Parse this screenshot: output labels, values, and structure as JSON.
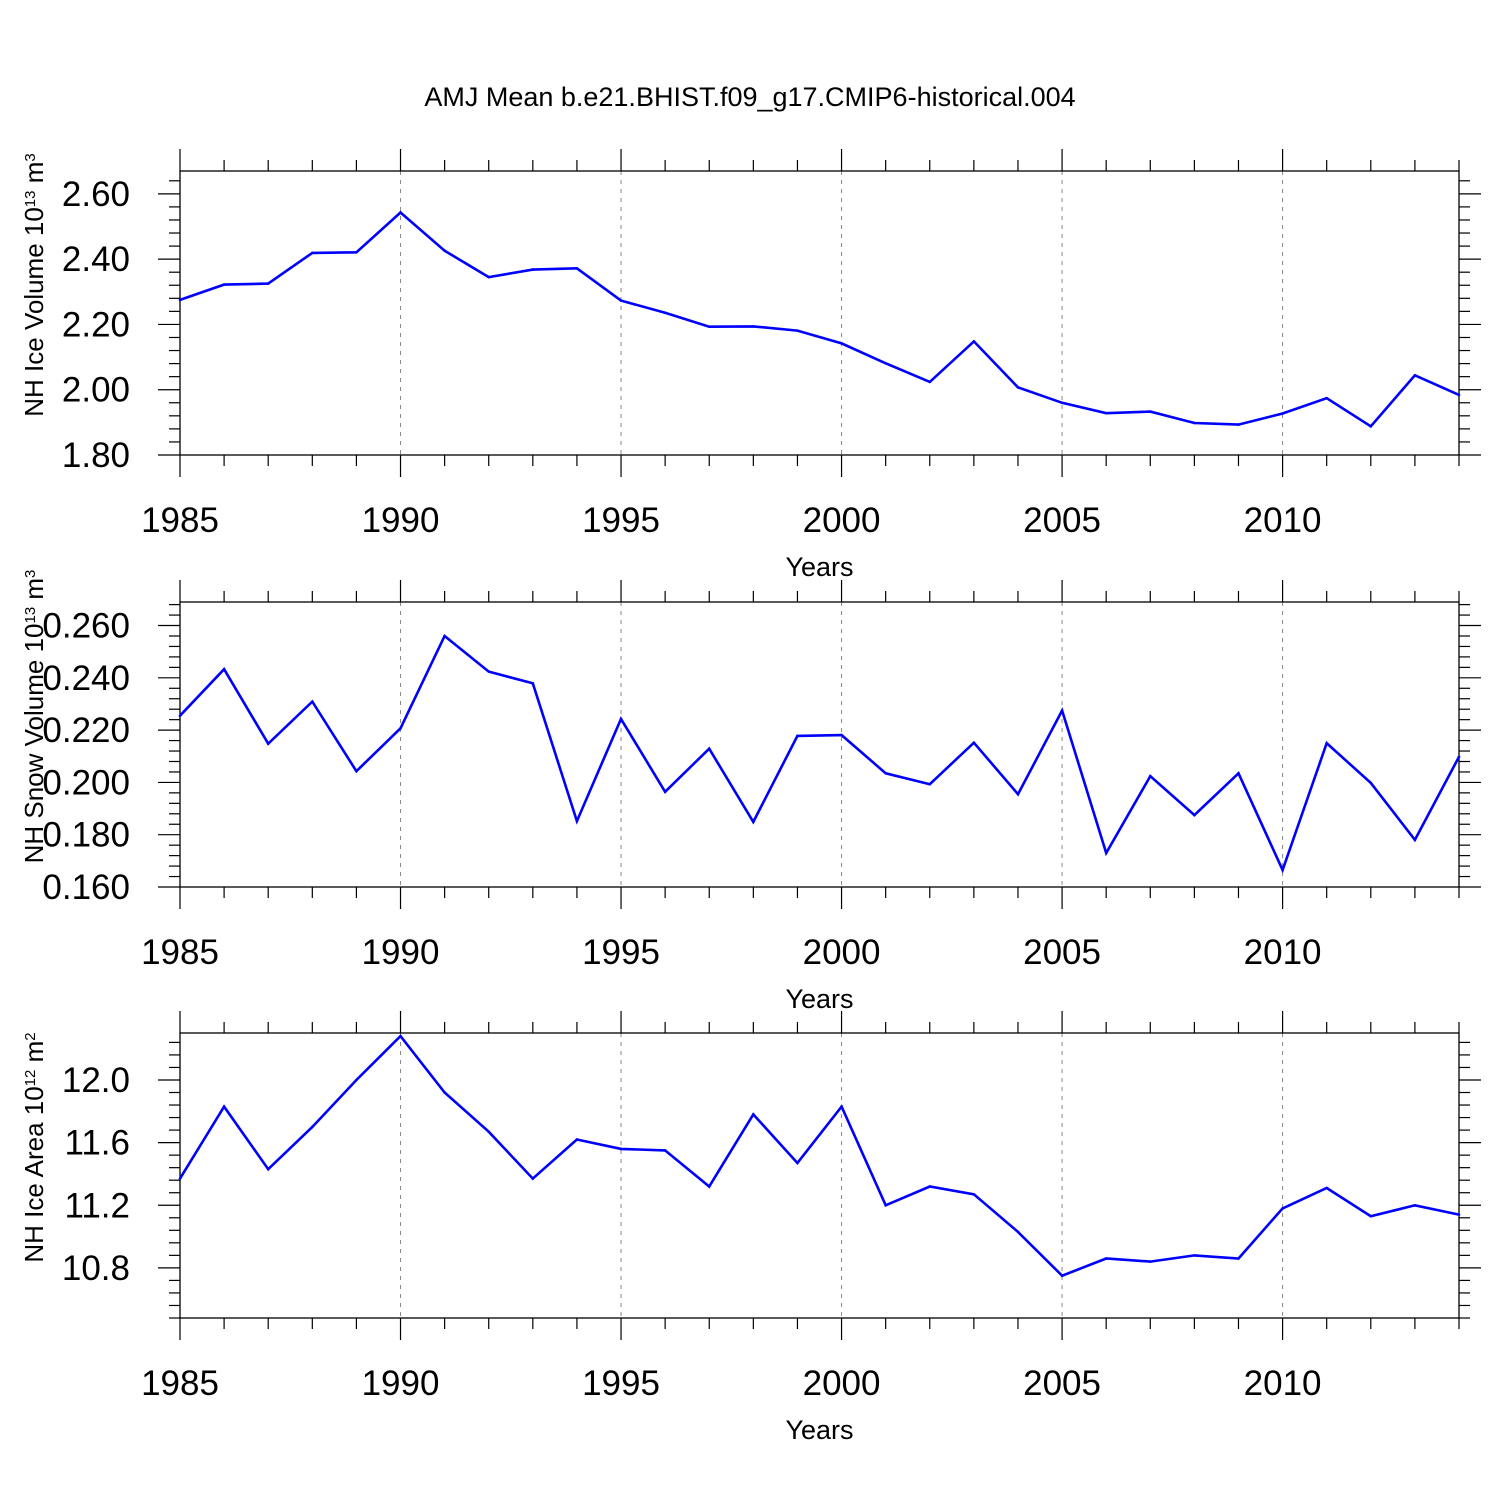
{
  "title": "AMJ Mean b.e21.BHIST.f09_g17.CMIP6-historical.004",
  "line_color": "#0000ff",
  "chart_data": [
    {
      "type": "line",
      "xlabel": "Years",
      "ylabel": {
        "text": "NH Ice Volume 10",
        "exp": "13",
        "unit": " m",
        "unit_exp": "3"
      },
      "xlim": [
        1985,
        2014
      ],
      "ylim": [
        1.8,
        2.67
      ],
      "x_ticks": [
        1985,
        1990,
        1995,
        2000,
        2005,
        2010
      ],
      "x_tick_labels": [
        "1985",
        "1990",
        "1995",
        "2000",
        "2005",
        "2010"
      ],
      "y_ticks": [
        1.8,
        2.0,
        2.2,
        2.4,
        2.6
      ],
      "y_tick_labels": [
        "1.80",
        "2.00",
        "2.20",
        "2.40",
        "2.60"
      ],
      "y_minor_step": 0.04,
      "vlines": [
        1990,
        1995,
        2000,
        2005,
        2010
      ],
      "series": [
        {
          "name": "NH Ice Volume",
          "x": [
            1985,
            1986,
            1987,
            1988,
            1989,
            1990,
            1991,
            1992,
            1993,
            1994,
            1995,
            1996,
            1997,
            1998,
            1999,
            2000,
            2001,
            2002,
            2003,
            2004,
            2005,
            2006,
            2007,
            2008,
            2009,
            2010,
            2011,
            2012,
            2013,
            2014
          ],
          "values": [
            2.275,
            2.322,
            2.325,
            2.419,
            2.421,
            2.543,
            2.426,
            2.345,
            2.368,
            2.372,
            2.273,
            2.236,
            2.193,
            2.194,
            2.181,
            2.142,
            2.081,
            2.024,
            2.148,
            2.007,
            1.96,
            1.928,
            1.933,
            1.898,
            1.893,
            1.927,
            1.974,
            1.888,
            2.044,
            1.984
          ]
        }
      ]
    },
    {
      "type": "line",
      "xlabel": "Years",
      "ylabel": {
        "text": "NH Snow Volume 10",
        "exp": "13",
        "unit": " m",
        "unit_exp": "3"
      },
      "xlim": [
        1985,
        2014
      ],
      "ylim": [
        0.16,
        0.269
      ],
      "x_ticks": [
        1985,
        1990,
        1995,
        2000,
        2005,
        2010
      ],
      "x_tick_labels": [
        "1985",
        "1990",
        "1995",
        "2000",
        "2005",
        "2010"
      ],
      "y_ticks": [
        0.16,
        0.18,
        0.2,
        0.22,
        0.24,
        0.26
      ],
      "y_tick_labels": [
        "0.160",
        "0.180",
        "0.200",
        "0.220",
        "0.240",
        "0.260"
      ],
      "y_minor_step": 0.004,
      "vlines": [
        1990,
        1995,
        2000,
        2005,
        2010
      ],
      "series": [
        {
          "name": "NH Snow Volume",
          "x": [
            1985,
            1986,
            1987,
            1988,
            1989,
            1990,
            1991,
            1992,
            1993,
            1994,
            1995,
            1996,
            1997,
            1998,
            1999,
            2000,
            2001,
            2002,
            2003,
            2004,
            2005,
            2006,
            2007,
            2008,
            2009,
            2010,
            2011,
            2012,
            2013,
            2014
          ],
          "values": [
            0.2255,
            0.2433,
            0.2148,
            0.2309,
            0.2043,
            0.2207,
            0.256,
            0.2424,
            0.2379,
            0.1852,
            0.2243,
            0.1964,
            0.2129,
            0.1849,
            0.2178,
            0.2181,
            0.2035,
            0.1993,
            0.2152,
            0.1955,
            0.2275,
            0.173,
            0.2024,
            0.1875,
            0.2035,
            0.1665,
            0.215,
            0.1998,
            0.178,
            0.2098
          ]
        }
      ]
    },
    {
      "type": "line",
      "xlabel": "Years",
      "ylabel": {
        "text": "NH Ice Area 10",
        "exp": "12",
        "unit": " m",
        "unit_exp": "2"
      },
      "xlim": [
        1985,
        2014
      ],
      "ylim": [
        10.48,
        12.3
      ],
      "x_ticks": [
        1985,
        1990,
        1995,
        2000,
        2005,
        2010
      ],
      "x_tick_labels": [
        "1985",
        "1990",
        "1995",
        "2000",
        "2005",
        "2010"
      ],
      "y_ticks": [
        10.8,
        11.2,
        11.6,
        12.0
      ],
      "y_tick_labels": [
        "10.8",
        "11.2",
        "11.6",
        "12.0"
      ],
      "y_minor_step": 0.08,
      "vlines": [
        1990,
        1995,
        2000,
        2005,
        2010
      ],
      "series": [
        {
          "name": "NH Ice Area",
          "x": [
            1985,
            1986,
            1987,
            1988,
            1989,
            1990,
            1991,
            1992,
            1993,
            1994,
            1995,
            1996,
            1997,
            1998,
            1999,
            2000,
            2001,
            2002,
            2003,
            2004,
            2005,
            2006,
            2007,
            2008,
            2009,
            2010,
            2011,
            2012,
            2013,
            2014
          ],
          "values": [
            11.37,
            11.83,
            11.43,
            11.7,
            12.0,
            12.28,
            11.92,
            11.67,
            11.37,
            11.62,
            11.56,
            11.55,
            11.32,
            11.78,
            11.47,
            11.83,
            11.2,
            11.32,
            11.27,
            11.03,
            10.75,
            10.86,
            10.84,
            10.88,
            10.86,
            11.18,
            11.31,
            11.13,
            11.2,
            11.14
          ]
        }
      ]
    }
  ]
}
